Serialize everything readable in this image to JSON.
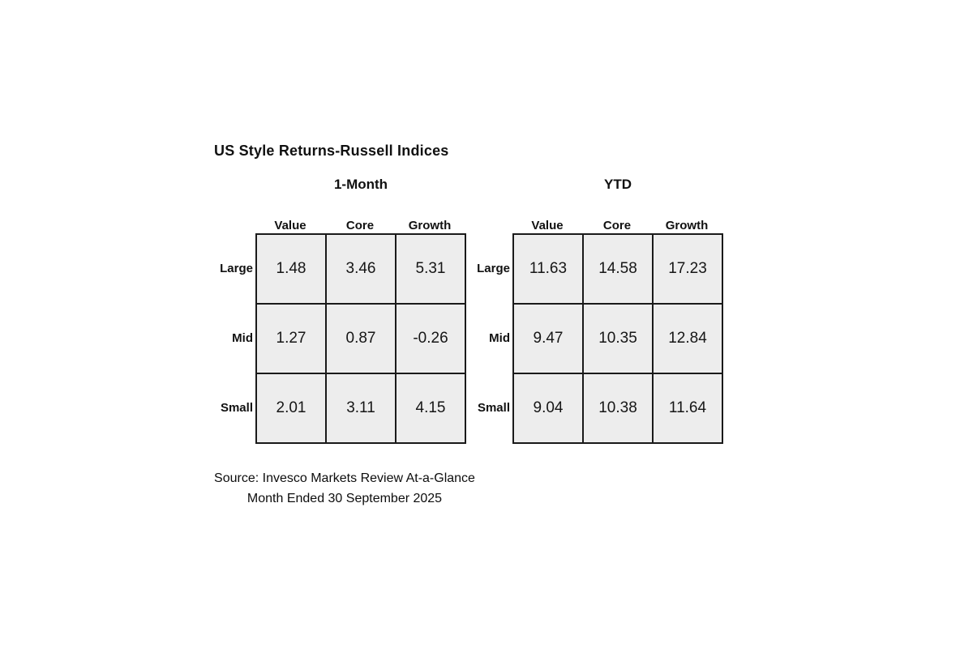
{
  "title": "US Style Returns-Russell Indices",
  "source": {
    "line1": "Source: Invesco Markets Review At-a-Glance",
    "line2": "Month Ended 30 September 2025"
  },
  "colors": {
    "cell_fill": "#ededed",
    "border": "#1a1a1a",
    "text": "#111111",
    "background": "#ffffff"
  },
  "chart_data": [
    {
      "type": "table",
      "title": "1-Month",
      "row_labels": [
        "Large",
        "Mid",
        "Small"
      ],
      "col_labels": [
        "Value",
        "Core",
        "Growth"
      ],
      "values": [
        [
          1.48,
          3.46,
          5.31
        ],
        [
          1.27,
          0.87,
          -0.26
        ],
        [
          2.01,
          3.11,
          4.15
        ]
      ]
    },
    {
      "type": "table",
      "title": "YTD",
      "row_labels": [
        "Large",
        "Mid",
        "Small"
      ],
      "col_labels": [
        "Value",
        "Core",
        "Growth"
      ],
      "values": [
        [
          11.63,
          14.58,
          17.23
        ],
        [
          9.47,
          10.35,
          12.84
        ],
        [
          9.04,
          10.38,
          11.64
        ]
      ]
    }
  ]
}
